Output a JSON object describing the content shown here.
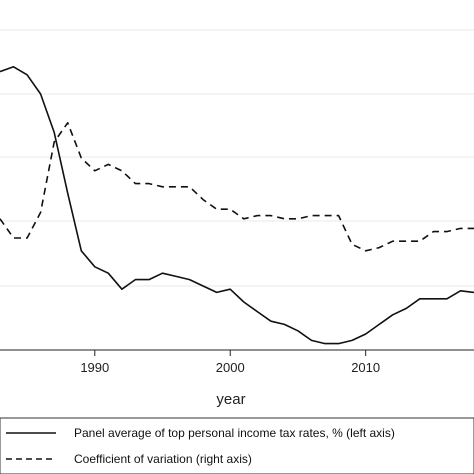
{
  "chart_data": {
    "type": "line",
    "title": "",
    "xlabel": "year",
    "xlim": [
      1983,
      2018
    ],
    "x_ticks": [
      1990,
      2000,
      2010
    ],
    "grid": true,
    "legend_position": "bottom",
    "series": [
      {
        "name": "Panel average of top personal income tax rates, % (left axis)",
        "style": "solid",
        "color": "#111111",
        "x": [
          1983,
          1984,
          1985,
          1986,
          1987,
          1988,
          1989,
          1990,
          1991,
          1992,
          1993,
          1994,
          1995,
          1996,
          1997,
          1998,
          1999,
          2000,
          2001,
          2002,
          2003,
          2004,
          2005,
          2006,
          2007,
          2008,
          2009,
          2010,
          2011,
          2012,
          2013,
          2014,
          2015,
          2016,
          2017,
          2018
        ],
        "y": [
          0.87,
          0.885,
          0.86,
          0.8,
          0.68,
          0.49,
          0.31,
          0.26,
          0.24,
          0.19,
          0.22,
          0.22,
          0.24,
          0.23,
          0.22,
          0.2,
          0.18,
          0.19,
          0.15,
          0.12,
          0.09,
          0.08,
          0.06,
          0.03,
          0.02,
          0.02,
          0.03,
          0.05,
          0.08,
          0.11,
          0.13,
          0.16,
          0.16,
          0.16,
          0.185,
          0.18
        ]
      },
      {
        "name": "Coefficient of variation (right axis)",
        "style": "dashed",
        "color": "#111111",
        "x": [
          1983,
          1984,
          1985,
          1986,
          1987,
          1988,
          1989,
          1990,
          1991,
          1992,
          1993,
          1994,
          1995,
          1996,
          1997,
          1998,
          1999,
          2000,
          2001,
          2002,
          2003,
          2004,
          2005,
          2006,
          2007,
          2008,
          2009,
          2010,
          2011,
          2012,
          2013,
          2014,
          2015,
          2016,
          2017,
          2018
        ],
        "y": [
          0.41,
          0.35,
          0.35,
          0.43,
          0.65,
          0.71,
          0.6,
          0.56,
          0.58,
          0.56,
          0.52,
          0.52,
          0.51,
          0.51,
          0.51,
          0.47,
          0.44,
          0.44,
          0.41,
          0.42,
          0.42,
          0.41,
          0.41,
          0.42,
          0.42,
          0.42,
          0.33,
          0.31,
          0.32,
          0.34,
          0.34,
          0.34,
          0.37,
          0.37,
          0.38,
          0.38
        ]
      }
    ]
  }
}
